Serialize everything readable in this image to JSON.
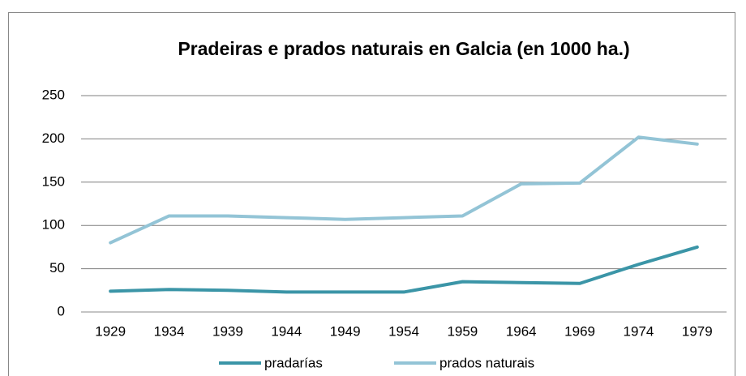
{
  "chart_data": {
    "type": "line",
    "title": "Pradeiras e prados naturais en Galcia (en 1000 ha.)",
    "categories": [
      "1929",
      "1934",
      "1939",
      "1944",
      "1949",
      "1954",
      "1959",
      "1964",
      "1969",
      "1974",
      "1979"
    ],
    "series": [
      {
        "name": "pradarías",
        "color": "#3b95a7",
        "values": [
          24,
          26,
          25,
          23,
          23,
          23,
          35,
          34,
          33,
          55,
          75
        ]
      },
      {
        "name": "prados naturais",
        "color": "#93c4d6",
        "values": [
          80,
          111,
          111,
          109,
          107,
          109,
          111,
          148,
          149,
          202,
          194
        ]
      }
    ],
    "ylim": [
      0,
      250
    ],
    "yticks": [
      0,
      50,
      100,
      150,
      200,
      250
    ],
    "grid": true,
    "legend": "bottom"
  }
}
